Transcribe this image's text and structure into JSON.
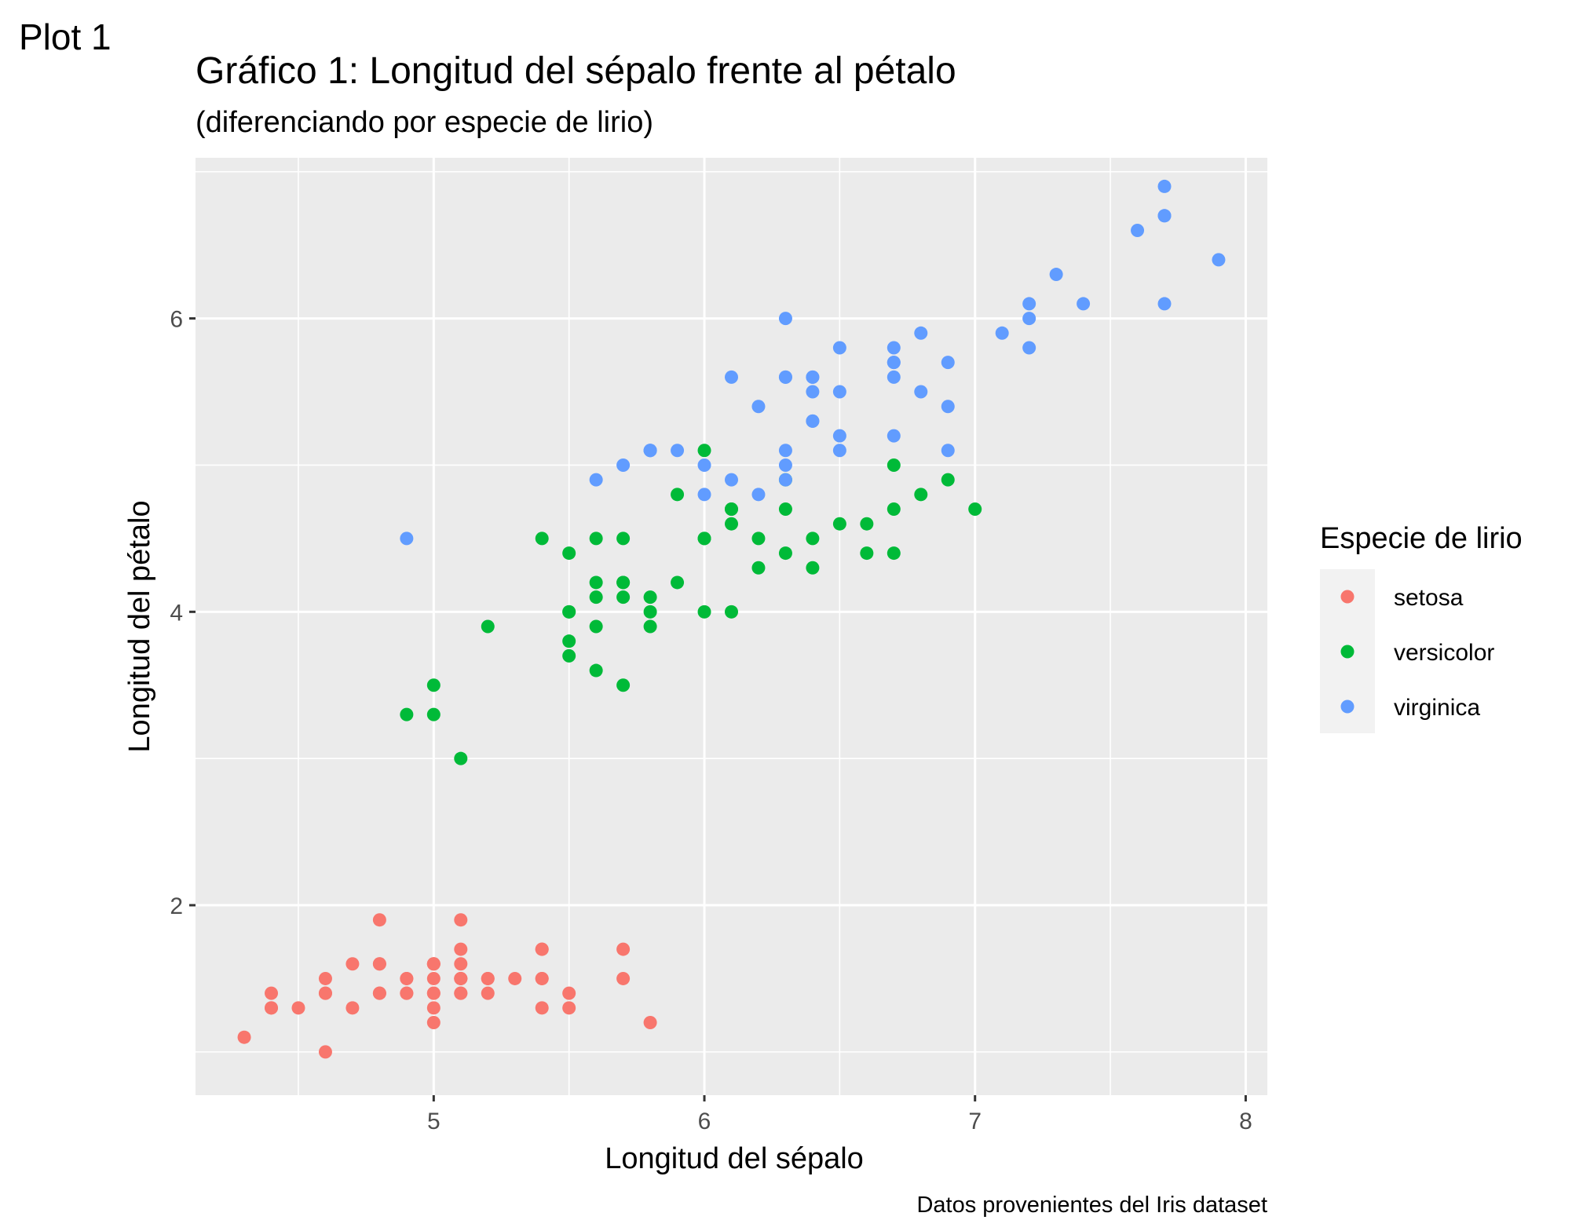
{
  "plot_label": "Plot 1",
  "chart_data": {
    "type": "scatter",
    "title": "Gráfico 1: Longitud del sépalo frente al pétalo",
    "subtitle": "(diferenciando por especie de lirio)",
    "xlabel": "Longitud del sépalo",
    "ylabel": "Longitud del pétalo",
    "caption": "Datos provenientes del Iris dataset",
    "xlim": [
      4.12,
      8.08
    ],
    "ylim": [
      0.705,
      7.095
    ],
    "x_ticks": [
      5,
      6,
      7,
      8
    ],
    "x_tick_labels": [
      "5",
      "6",
      "7",
      "8"
    ],
    "y_ticks": [
      2,
      4,
      6
    ],
    "y_tick_labels": [
      "2",
      "4",
      "6"
    ],
    "grid": true,
    "legend": {
      "title": "Especie de lirio",
      "position": "right"
    },
    "series": [
      {
        "name": "setosa",
        "color": "#F8766D",
        "points": [
          [
            5.1,
            1.4
          ],
          [
            4.9,
            1.4
          ],
          [
            4.7,
            1.3
          ],
          [
            4.6,
            1.5
          ],
          [
            5.0,
            1.4
          ],
          [
            5.4,
            1.7
          ],
          [
            4.6,
            1.4
          ],
          [
            5.0,
            1.5
          ],
          [
            4.4,
            1.4
          ],
          [
            4.9,
            1.5
          ],
          [
            5.4,
            1.5
          ],
          [
            4.8,
            1.6
          ],
          [
            4.8,
            1.4
          ],
          [
            4.3,
            1.1
          ],
          [
            5.8,
            1.2
          ],
          [
            5.7,
            1.5
          ],
          [
            5.4,
            1.3
          ],
          [
            5.1,
            1.4
          ],
          [
            5.7,
            1.7
          ],
          [
            5.1,
            1.5
          ],
          [
            5.4,
            1.7
          ],
          [
            5.1,
            1.5
          ],
          [
            4.6,
            1.0
          ],
          [
            5.1,
            1.7
          ],
          [
            4.8,
            1.9
          ],
          [
            5.0,
            1.6
          ],
          [
            5.0,
            1.6
          ],
          [
            5.2,
            1.5
          ],
          [
            5.2,
            1.4
          ],
          [
            4.7,
            1.6
          ],
          [
            4.8,
            1.6
          ],
          [
            5.4,
            1.5
          ],
          [
            5.2,
            1.5
          ],
          [
            5.5,
            1.4
          ],
          [
            4.9,
            1.5
          ],
          [
            5.0,
            1.2
          ],
          [
            5.5,
            1.3
          ],
          [
            4.9,
            1.4
          ],
          [
            4.4,
            1.3
          ],
          [
            5.1,
            1.5
          ],
          [
            5.0,
            1.3
          ],
          [
            4.5,
            1.3
          ],
          [
            4.4,
            1.3
          ],
          [
            5.0,
            1.6
          ],
          [
            5.1,
            1.9
          ],
          [
            4.8,
            1.4
          ],
          [
            5.1,
            1.6
          ],
          [
            4.6,
            1.4
          ],
          [
            5.3,
            1.5
          ],
          [
            5.0,
            1.4
          ]
        ]
      },
      {
        "name": "versicolor",
        "color": "#00BA38",
        "points": [
          [
            7.0,
            4.7
          ],
          [
            6.4,
            4.5
          ],
          [
            6.9,
            4.9
          ],
          [
            5.5,
            4.0
          ],
          [
            6.5,
            4.6
          ],
          [
            5.7,
            4.5
          ],
          [
            6.3,
            4.7
          ],
          [
            4.9,
            3.3
          ],
          [
            6.6,
            4.6
          ],
          [
            5.2,
            3.9
          ],
          [
            5.0,
            3.5
          ],
          [
            5.9,
            4.2
          ],
          [
            6.0,
            4.0
          ],
          [
            6.1,
            4.7
          ],
          [
            5.6,
            3.6
          ],
          [
            6.7,
            4.4
          ],
          [
            5.6,
            4.5
          ],
          [
            5.8,
            4.1
          ],
          [
            6.2,
            4.5
          ],
          [
            5.6,
            3.9
          ],
          [
            5.9,
            4.8
          ],
          [
            6.1,
            4.0
          ],
          [
            6.3,
            4.9
          ],
          [
            6.1,
            4.7
          ],
          [
            6.4,
            4.3
          ],
          [
            6.6,
            4.4
          ],
          [
            6.8,
            4.8
          ],
          [
            6.7,
            5.0
          ],
          [
            6.0,
            4.5
          ],
          [
            5.7,
            3.5
          ],
          [
            5.5,
            3.8
          ],
          [
            5.5,
            3.7
          ],
          [
            5.8,
            3.9
          ],
          [
            6.0,
            5.1
          ],
          [
            5.4,
            4.5
          ],
          [
            6.0,
            4.5
          ],
          [
            6.7,
            4.7
          ],
          [
            6.3,
            4.4
          ],
          [
            5.6,
            4.1
          ],
          [
            5.5,
            4.0
          ],
          [
            5.5,
            4.4
          ],
          [
            6.1,
            4.6
          ],
          [
            5.8,
            4.0
          ],
          [
            5.0,
            3.3
          ],
          [
            5.6,
            4.2
          ],
          [
            5.7,
            4.2
          ],
          [
            5.7,
            4.2
          ],
          [
            6.2,
            4.3
          ],
          [
            5.1,
            3.0
          ],
          [
            5.7,
            4.1
          ]
        ]
      },
      {
        "name": "virginica",
        "color": "#619CFF",
        "points": [
          [
            6.3,
            6.0
          ],
          [
            5.8,
            5.1
          ],
          [
            7.1,
            5.9
          ],
          [
            6.3,
            5.6
          ],
          [
            6.5,
            5.8
          ],
          [
            7.6,
            6.6
          ],
          [
            4.9,
            4.5
          ],
          [
            7.3,
            6.3
          ],
          [
            6.7,
            5.8
          ],
          [
            7.2,
            6.1
          ],
          [
            6.5,
            5.1
          ],
          [
            6.4,
            5.3
          ],
          [
            6.8,
            5.5
          ],
          [
            5.7,
            5.0
          ],
          [
            5.8,
            5.1
          ],
          [
            6.4,
            5.3
          ],
          [
            6.5,
            5.5
          ],
          [
            7.7,
            6.7
          ],
          [
            7.7,
            6.9
          ],
          [
            6.0,
            5.0
          ],
          [
            6.9,
            5.7
          ],
          [
            5.6,
            4.9
          ],
          [
            7.7,
            6.7
          ],
          [
            6.3,
            4.9
          ],
          [
            6.7,
            5.7
          ],
          [
            7.2,
            6.0
          ],
          [
            6.2,
            4.8
          ],
          [
            6.1,
            4.9
          ],
          [
            6.4,
            5.6
          ],
          [
            7.2,
            5.8
          ],
          [
            7.4,
            6.1
          ],
          [
            7.9,
            6.4
          ],
          [
            6.4,
            5.6
          ],
          [
            6.3,
            5.1
          ],
          [
            6.1,
            5.6
          ],
          [
            7.7,
            6.1
          ],
          [
            6.3,
            5.6
          ],
          [
            6.4,
            5.5
          ],
          [
            6.0,
            4.8
          ],
          [
            6.9,
            5.4
          ],
          [
            6.7,
            5.6
          ],
          [
            6.9,
            5.1
          ],
          [
            5.8,
            5.1
          ],
          [
            6.8,
            5.9
          ],
          [
            6.7,
            5.7
          ],
          [
            6.7,
            5.2
          ],
          [
            6.3,
            5.0
          ],
          [
            6.5,
            5.2
          ],
          [
            6.2,
            5.4
          ],
          [
            5.9,
            5.1
          ]
        ]
      }
    ]
  }
}
